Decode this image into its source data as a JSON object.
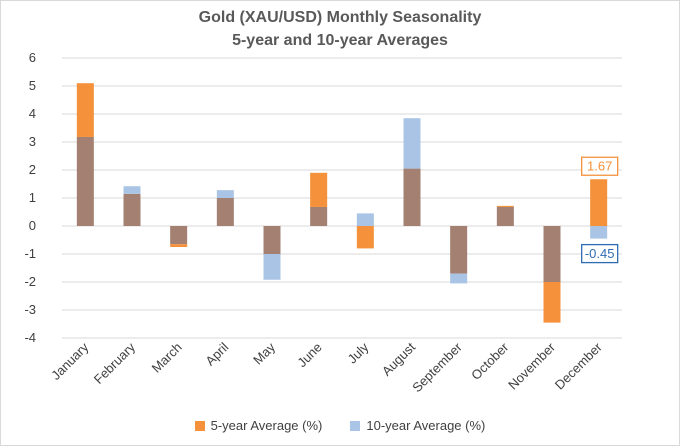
{
  "title_line1": "Gold (XAU/USD) Monthly Seasonality",
  "title_line2": "5-year and 10-year Averages",
  "colors": {
    "five_year": "#f4913a",
    "ten_year": "#a9c4e4",
    "overlap": "#a38072",
    "grid": "#d9d9d9",
    "callout_five_border": "#f4913a",
    "callout_ten_border": "#2f6db3"
  },
  "chart_data": {
    "type": "bar",
    "categories": [
      "January",
      "February",
      "March",
      "April",
      "May",
      "June",
      "July",
      "August",
      "September",
      "October",
      "November",
      "December"
    ],
    "series": [
      {
        "name": "5-year Average (%)",
        "values": [
          5.1,
          1.15,
          -0.75,
          1.0,
          -1.0,
          1.9,
          -0.8,
          2.05,
          -1.7,
          0.72,
          -3.45,
          1.67
        ]
      },
      {
        "name": "10-year Average (%)",
        "values": [
          3.18,
          1.42,
          -0.65,
          1.28,
          -1.92,
          0.68,
          0.45,
          3.85,
          -2.05,
          0.68,
          -2.0,
          -0.45
        ]
      }
    ],
    "ylim": [
      -4,
      6
    ],
    "yticks": [
      "-4",
      "-3",
      "-2",
      "-1",
      "0",
      "1",
      "2",
      "3",
      "4",
      "5",
      "6"
    ],
    "grid": true,
    "legend_position": "bottom",
    "annotations": [
      {
        "category": "December",
        "series": "5-year Average (%)",
        "text": "1.67"
      },
      {
        "category": "December",
        "series": "10-year Average (%)",
        "text": "-0.45"
      }
    ]
  }
}
